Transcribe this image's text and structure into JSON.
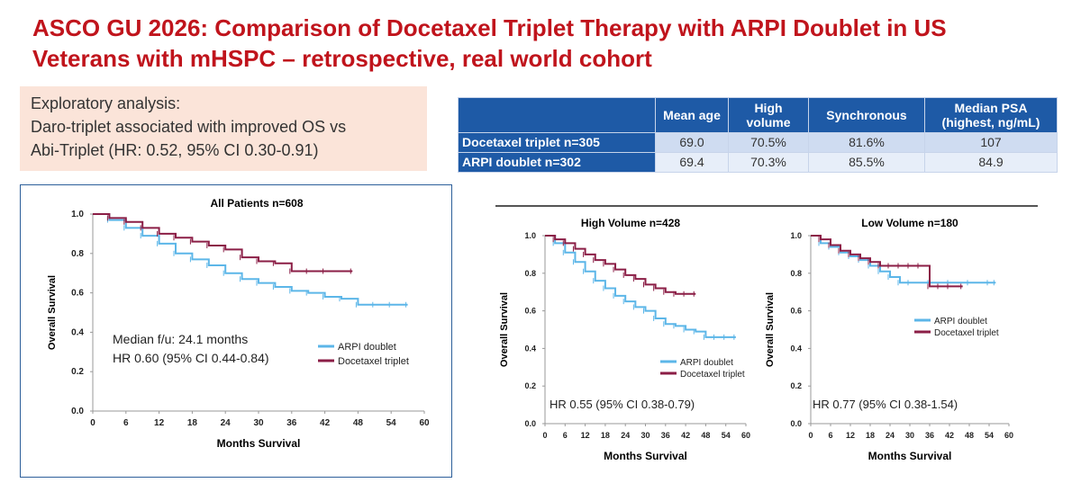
{
  "slide": {
    "title_line1": "ASCO GU 2026: Comparison of Docetaxel Triplet Therapy with ARPI Doublet in US",
    "title_line2": "Veterans with mHSPC – retrospective, real world cohort",
    "exploratory": [
      "Exploratory analysis:",
      "Daro-triplet associated with improved OS vs",
      "Abi-Triplet (HR: 0.52, 95% CI 0.30-0.91)"
    ]
  },
  "summary_table": {
    "headers": [
      "",
      "Mean age",
      "High volume",
      "Synchronous",
      "Median PSA (highest, ng/mL)"
    ],
    "rows": [
      {
        "label": "Docetaxel triplet n=305",
        "cells": [
          "69.0",
          "70.5%",
          "81.6%",
          "107"
        ]
      },
      {
        "label": "ARPI doublet n=302",
        "cells": [
          "69.4",
          "70.3%",
          "85.5%",
          "84.9"
        ]
      }
    ]
  },
  "colors": {
    "title": "#c0141c",
    "arpi": "#5cb6e8",
    "docetaxel": "#8b1e46",
    "table_header": "#1e5aa6"
  },
  "chart_data": [
    {
      "type": "line",
      "title": "All Patients n=608",
      "xlabel": "Months Survival",
      "ylabel": "Overall Survival",
      "xticks": [
        0,
        6,
        12,
        18,
        24,
        30,
        36,
        42,
        48,
        54,
        60
      ],
      "yticks": [
        0.0,
        0.2,
        0.4,
        0.6,
        0.8,
        1.0
      ],
      "xlim": [
        0,
        60
      ],
      "ylim": [
        0,
        1.0
      ],
      "legend_position": "bottom-right",
      "annotations": [
        "Median f/u: 24.1 months",
        "HR 0.60 (95% CI 0.44-0.84)"
      ],
      "series": [
        {
          "name": "ARPI doublet",
          "color": "#5cb6e8",
          "x": [
            0,
            3,
            6,
            9,
            12,
            15,
            18,
            21,
            24,
            27,
            30,
            33,
            36,
            39,
            42,
            45,
            48,
            51,
            54,
            57
          ],
          "y": [
            1.0,
            0.97,
            0.93,
            0.89,
            0.85,
            0.8,
            0.77,
            0.74,
            0.7,
            0.67,
            0.65,
            0.63,
            0.61,
            0.6,
            0.58,
            0.57,
            0.54,
            0.54,
            0.54,
            0.54
          ]
        },
        {
          "name": "Docetaxel triplet",
          "color": "#8b1e46",
          "x": [
            0,
            3,
            6,
            9,
            12,
            15,
            18,
            21,
            24,
            27,
            30,
            33,
            36,
            39,
            42,
            47
          ],
          "y": [
            1.0,
            0.98,
            0.96,
            0.93,
            0.9,
            0.88,
            0.86,
            0.84,
            0.82,
            0.78,
            0.76,
            0.75,
            0.71,
            0.71,
            0.71,
            0.71
          ]
        }
      ]
    },
    {
      "type": "line",
      "title": "High Volume n=428",
      "xlabel": "Months Survival",
      "ylabel": "Overall Survival",
      "xticks": [
        0,
        6,
        12,
        18,
        24,
        30,
        36,
        42,
        48,
        54,
        60
      ],
      "yticks": [
        0.0,
        0.2,
        0.4,
        0.6,
        0.8,
        1.0
      ],
      "xlim": [
        0,
        60
      ],
      "ylim": [
        0,
        1.0
      ],
      "legend_position": "bottom-right",
      "annotations": [
        "HR 0.55 (95% CI 0.38-0.79)"
      ],
      "series": [
        {
          "name": "ARPI doublet",
          "color": "#5cb6e8",
          "x": [
            0,
            3,
            6,
            9,
            12,
            15,
            18,
            21,
            24,
            27,
            30,
            33,
            36,
            39,
            42,
            45,
            48,
            51,
            54,
            57
          ],
          "y": [
            1.0,
            0.96,
            0.91,
            0.86,
            0.81,
            0.76,
            0.72,
            0.68,
            0.65,
            0.62,
            0.6,
            0.56,
            0.53,
            0.52,
            0.5,
            0.49,
            0.46,
            0.46,
            0.46,
            0.46
          ]
        },
        {
          "name": "Docetaxel triplet",
          "color": "#8b1e46",
          "x": [
            0,
            3,
            6,
            9,
            12,
            15,
            18,
            21,
            24,
            27,
            30,
            33,
            36,
            39,
            42,
            45
          ],
          "y": [
            1.0,
            0.98,
            0.96,
            0.93,
            0.9,
            0.87,
            0.85,
            0.82,
            0.79,
            0.77,
            0.74,
            0.72,
            0.7,
            0.69,
            0.69,
            0.69
          ]
        }
      ]
    },
    {
      "type": "line",
      "title": "Low Volume n=180",
      "xlabel": "Months Survival",
      "ylabel": "Overall Survival",
      "xticks": [
        0,
        6,
        12,
        18,
        24,
        30,
        36,
        42,
        48,
        54,
        60
      ],
      "yticks": [
        0.0,
        0.2,
        0.4,
        0.6,
        0.8,
        1.0
      ],
      "xlim": [
        0,
        60
      ],
      "ylim": [
        0,
        1.0
      ],
      "legend_position": "center-right",
      "annotations": [
        "HR 0.77 (95% CI 0.38-1.54)"
      ],
      "series": [
        {
          "name": "ARPI doublet",
          "color": "#5cb6e8",
          "x": [
            0,
            3,
            6,
            9,
            12,
            15,
            18,
            21,
            24,
            27,
            30,
            36,
            42,
            48,
            54,
            56
          ],
          "y": [
            1.0,
            0.96,
            0.94,
            0.91,
            0.89,
            0.87,
            0.84,
            0.81,
            0.78,
            0.75,
            0.75,
            0.75,
            0.75,
            0.75,
            0.75,
            0.75
          ]
        },
        {
          "name": "Docetaxel triplet",
          "color": "#8b1e46",
          "x": [
            0,
            3,
            6,
            9,
            12,
            15,
            18,
            21,
            24,
            27,
            30,
            33,
            36,
            39,
            42,
            46
          ],
          "y": [
            1.0,
            0.98,
            0.95,
            0.92,
            0.9,
            0.88,
            0.86,
            0.84,
            0.84,
            0.84,
            0.84,
            0.84,
            0.73,
            0.73,
            0.73,
            0.73
          ]
        }
      ]
    }
  ]
}
